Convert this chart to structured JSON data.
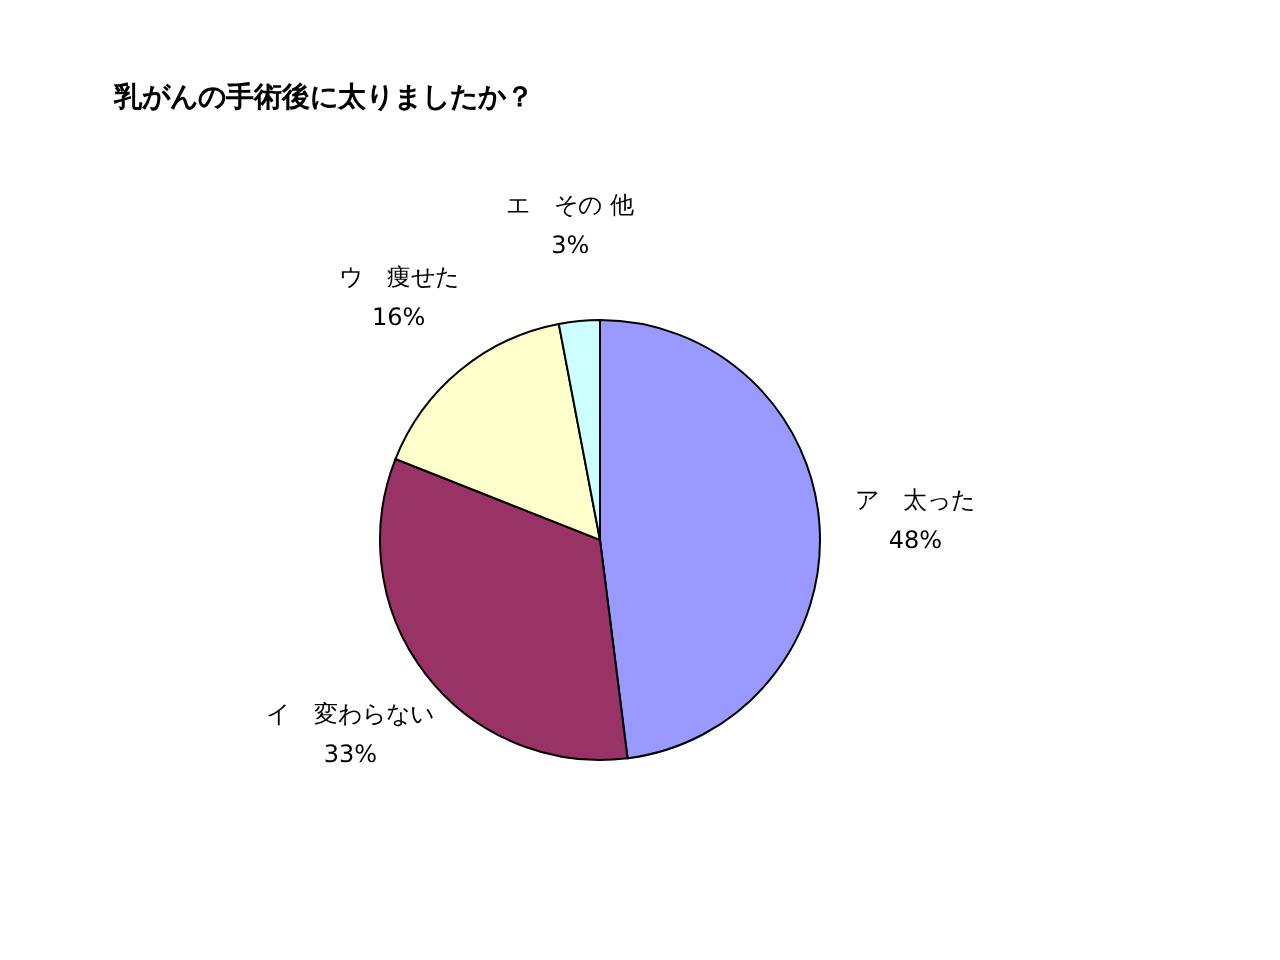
{
  "chart_data": {
    "type": "pie",
    "title": "乳がんの手術後に太りましたか？",
    "categories": [
      "ア　太った",
      "イ　変わらない",
      "ウ　痩せた",
      "エ　その 他"
    ],
    "values": [
      48,
      33,
      16,
      3
    ],
    "colors": [
      "#9999ff",
      "#993366",
      "#ffffcc",
      "#ccffff"
    ],
    "value_labels": [
      "48%",
      "33%",
      "16%",
      "3%"
    ],
    "legend": false
  }
}
